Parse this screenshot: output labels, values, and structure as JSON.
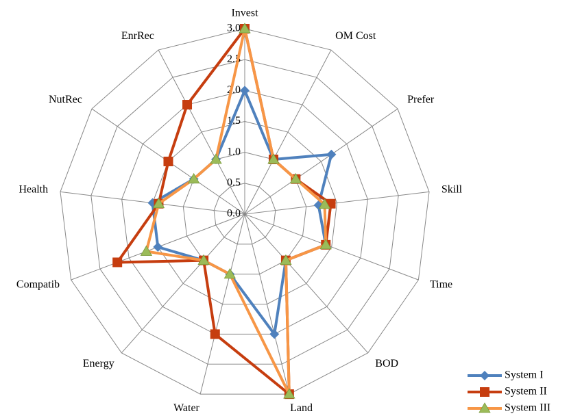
{
  "chart_data": {
    "type": "radar",
    "categories": [
      "Invest",
      "OM Cost",
      "Prefer",
      "Skill",
      "Time",
      "BOD",
      "Land",
      "Water",
      "Energy",
      "Compatib",
      "Health",
      "NutRec",
      "EnrRec"
    ],
    "ylim": [
      0,
      3
    ],
    "yticks": [
      {
        "value": 0,
        "label": "0.0"
      },
      0.5,
      {
        "value": 1,
        "label": "1.0"
      },
      1.5,
      {
        "value": 2,
        "label": "2.0"
      },
      2.5,
      {
        "value": 3,
        "label": "3.0"
      }
    ],
    "grid": true,
    "legend": "bottom-right",
    "series": [
      {
        "name": "System I",
        "color": "#4f81bd",
        "marker": "diamond",
        "marker_color": "#4f81bd",
        "values": [
          2.0,
          1.0,
          1.7,
          1.2,
          1.4,
          1.0,
          2.0,
          1.0,
          1.0,
          1.5,
          1.5,
          1.0,
          1.0
        ]
      },
      {
        "name": "System II",
        "color": "#c63d0f",
        "marker": "square",
        "marker_color": "#c63d0f",
        "values": [
          3.0,
          1.0,
          1.0,
          1.4,
          1.4,
          1.0,
          3.0,
          2.0,
          1.0,
          2.2,
          1.4,
          1.5,
          2.0
        ]
      },
      {
        "name": "System III",
        "color": "#f79646",
        "marker": "triangle",
        "marker_color": "#9bbb59",
        "values": [
          3.0,
          1.0,
          1.0,
          1.3,
          1.4,
          1.0,
          3.0,
          1.0,
          1.0,
          1.7,
          1.4,
          1.0,
          1.0
        ]
      }
    ]
  }
}
